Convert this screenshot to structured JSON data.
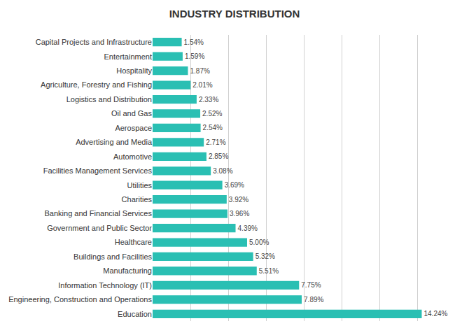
{
  "chart_data": {
    "type": "bar",
    "orientation": "horizontal",
    "title": "INDUSTRY DISTRIBUTION",
    "categories": [
      "Education",
      "Engineering, Construction and Operations",
      "Information Technology (IT)",
      "Manufacturing",
      "Buildings and Facilities",
      "Healthcare",
      "Government and Public Sector",
      "Banking and Financial Services",
      "Charities",
      "Utilities",
      "Facilities Management Services",
      "Automotive",
      "Advertising and Media",
      "Aerospace",
      "Oil and Gas",
      "Logistics and Distribution",
      "Agriculture, Forestry and Fishing",
      "Hospitality",
      "Entertainment",
      "Capital Projects and Infrastructure"
    ],
    "values": [
      14.24,
      7.89,
      7.75,
      5.51,
      5.32,
      5.0,
      4.39,
      3.96,
      3.92,
      3.69,
      3.08,
      2.85,
      2.71,
      2.54,
      2.52,
      2.33,
      2.01,
      1.87,
      1.59,
      1.54
    ],
    "value_labels": [
      "14.24%",
      "7.89%",
      "7.75%",
      "5.51%",
      "5.32%",
      "5.00%",
      "4.39%",
      "3.96%",
      "3.92%",
      "3.69%",
      "3.08%",
      "2.85%",
      "2.71%",
      "2.54%",
      "2.52%",
      "2.33%",
      "2.01%",
      "1.87%",
      "1.59%",
      "1.54%"
    ],
    "color": "#2ABFB3",
    "xlim": [
      0,
      16
    ],
    "xticks": [
      0,
      2,
      4,
      6,
      8,
      10,
      12,
      14,
      16
    ],
    "grid": true,
    "tick_labels": "y",
    "data_labels": true
  }
}
